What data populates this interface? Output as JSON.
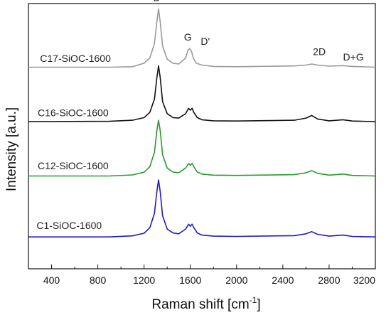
{
  "chart_data": {
    "type": "line",
    "title": "",
    "xlabel": "Raman shift [cm",
    "xlabel_sup": "-1",
    "xlabel_close": "]",
    "ylabel": "Intensity [a.u.]",
    "xlim": [
      200,
      3200
    ],
    "xticks": [
      "400",
      "800",
      "1200",
      "1600",
      "2000",
      "2400",
      "2800",
      "3200"
    ],
    "xtick_values": [
      400,
      800,
      1200,
      1600,
      2000,
      2400,
      2800,
      3200
    ],
    "y_ticks_shown": false,
    "y_range": [
      0,
      10
    ],
    "grid": false,
    "series": [
      {
        "name": "C17-SiOC-1600",
        "color": "#9a9a9a",
        "baseline": 7.6,
        "points": [
          [
            200,
            7.6
          ],
          [
            900,
            7.6
          ],
          [
            1100,
            7.62
          ],
          [
            1200,
            7.75
          ],
          [
            1250,
            7.95
          ],
          [
            1290,
            8.5
          ],
          [
            1310,
            9.3
          ],
          [
            1325,
            9.8
          ],
          [
            1340,
            9.3
          ],
          [
            1360,
            8.4
          ],
          [
            1400,
            7.9
          ],
          [
            1450,
            7.75
          ],
          [
            1500,
            7.72
          ],
          [
            1560,
            7.95
          ],
          [
            1580,
            8.25
          ],
          [
            1595,
            8.3
          ],
          [
            1610,
            8.2
          ],
          [
            1625,
            7.95
          ],
          [
            1650,
            7.75
          ],
          [
            1700,
            7.68
          ],
          [
            1800,
            7.63
          ],
          [
            2000,
            7.62
          ],
          [
            2500,
            7.65
          ],
          [
            2600,
            7.68
          ],
          [
            2650,
            7.72
          ],
          [
            2700,
            7.68
          ],
          [
            2800,
            7.64
          ],
          [
            2920,
            7.66
          ],
          [
            3000,
            7.63
          ],
          [
            3200,
            7.6
          ]
        ]
      },
      {
        "name": "C16-SiOC-1600",
        "color": "#111111",
        "baseline": 5.55,
        "points": [
          [
            200,
            5.55
          ],
          [
            900,
            5.56
          ],
          [
            1100,
            5.6
          ],
          [
            1200,
            5.7
          ],
          [
            1250,
            5.9
          ],
          [
            1290,
            6.4
          ],
          [
            1310,
            7.2
          ],
          [
            1325,
            7.65
          ],
          [
            1340,
            7.2
          ],
          [
            1360,
            6.3
          ],
          [
            1400,
            5.85
          ],
          [
            1450,
            5.7
          ],
          [
            1500,
            5.68
          ],
          [
            1560,
            5.85
          ],
          [
            1585,
            6.05
          ],
          [
            1600,
            5.98
          ],
          [
            1615,
            6.05
          ],
          [
            1630,
            5.9
          ],
          [
            1660,
            5.7
          ],
          [
            1700,
            5.62
          ],
          [
            1800,
            5.58
          ],
          [
            2000,
            5.57
          ],
          [
            2500,
            5.6
          ],
          [
            2600,
            5.68
          ],
          [
            2650,
            5.78
          ],
          [
            2700,
            5.65
          ],
          [
            2800,
            5.58
          ],
          [
            2920,
            5.62
          ],
          [
            3000,
            5.57
          ],
          [
            3200,
            5.55
          ]
        ]
      },
      {
        "name": "C12-SiOC-1600",
        "color": "#2a9a2a",
        "baseline": 3.5,
        "points": [
          [
            200,
            3.5
          ],
          [
            900,
            3.5
          ],
          [
            1100,
            3.54
          ],
          [
            1200,
            3.64
          ],
          [
            1250,
            3.85
          ],
          [
            1290,
            4.4
          ],
          [
            1310,
            5.2
          ],
          [
            1325,
            5.6
          ],
          [
            1340,
            5.2
          ],
          [
            1360,
            4.3
          ],
          [
            1400,
            3.8
          ],
          [
            1450,
            3.65
          ],
          [
            1500,
            3.62
          ],
          [
            1560,
            3.8
          ],
          [
            1585,
            3.97
          ],
          [
            1600,
            3.9
          ],
          [
            1615,
            3.97
          ],
          [
            1630,
            3.85
          ],
          [
            1660,
            3.65
          ],
          [
            1700,
            3.57
          ],
          [
            1800,
            3.53
          ],
          [
            2000,
            3.52
          ],
          [
            2500,
            3.55
          ],
          [
            2600,
            3.62
          ],
          [
            2650,
            3.7
          ],
          [
            2700,
            3.6
          ],
          [
            2800,
            3.53
          ],
          [
            2920,
            3.57
          ],
          [
            3000,
            3.52
          ],
          [
            3200,
            3.5
          ]
        ]
      },
      {
        "name": "C1-SiOC-1600",
        "color": "#1a1ad0",
        "baseline": 1.2,
        "points": [
          [
            200,
            1.2
          ],
          [
            900,
            1.2
          ],
          [
            1100,
            1.24
          ],
          [
            1200,
            1.34
          ],
          [
            1250,
            1.55
          ],
          [
            1290,
            2.1
          ],
          [
            1310,
            2.9
          ],
          [
            1325,
            3.35
          ],
          [
            1340,
            2.9
          ],
          [
            1360,
            2.0
          ],
          [
            1400,
            1.5
          ],
          [
            1450,
            1.35
          ],
          [
            1500,
            1.32
          ],
          [
            1560,
            1.5
          ],
          [
            1585,
            1.68
          ],
          [
            1600,
            1.6
          ],
          [
            1615,
            1.68
          ],
          [
            1630,
            1.55
          ],
          [
            1660,
            1.35
          ],
          [
            1700,
            1.27
          ],
          [
            1800,
            1.23
          ],
          [
            2000,
            1.22
          ],
          [
            2500,
            1.25
          ],
          [
            2600,
            1.32
          ],
          [
            2650,
            1.4
          ],
          [
            2700,
            1.3
          ],
          [
            2800,
            1.23
          ],
          [
            2920,
            1.27
          ],
          [
            3000,
            1.22
          ],
          [
            3200,
            1.2
          ]
        ]
      }
    ],
    "annotations": [
      {
        "text": "D",
        "x": 1280,
        "y": 10.1
      },
      {
        "text": "G",
        "x": 1545,
        "y": 8.6
      },
      {
        "text": "D'",
        "x": 1690,
        "y": 8.45
      },
      {
        "text": "2D",
        "x": 2660,
        "y": 8.05
      },
      {
        "text": "D+G",
        "x": 2920,
        "y": 7.85
      }
    ],
    "series_label_positions": [
      {
        "x": 300,
        "y": 7.8
      },
      {
        "x": 280,
        "y": 5.75
      },
      {
        "x": 280,
        "y": 3.75
      },
      {
        "x": 270,
        "y": 1.5
      }
    ]
  }
}
